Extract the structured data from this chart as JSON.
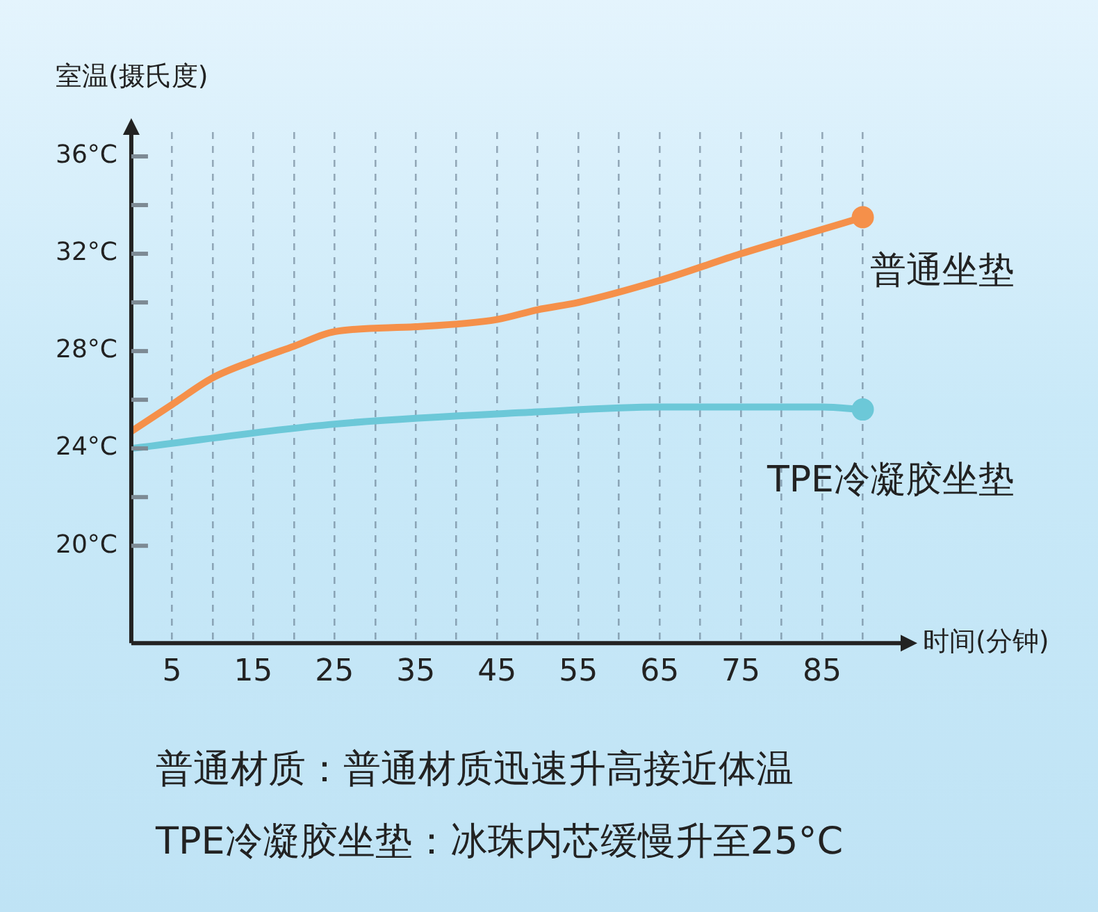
{
  "chart_data": {
    "type": "line",
    "ylabel": "室温(摄氏度)",
    "xlabel": "时间(分钟)",
    "xlim": [
      0,
      95
    ],
    "ylim": [
      16,
      37
    ],
    "xticks": [
      {
        "value": 5,
        "label": "5"
      },
      {
        "value": 10,
        "label": null
      },
      {
        "value": 15,
        "label": "15"
      },
      {
        "value": 20,
        "label": null
      },
      {
        "value": 25,
        "label": "25"
      },
      {
        "value": 30,
        "label": null
      },
      {
        "value": 35,
        "label": "35"
      },
      {
        "value": 40,
        "label": null
      },
      {
        "value": 45,
        "label": "45"
      },
      {
        "value": 50,
        "label": null
      },
      {
        "value": 55,
        "label": "55"
      },
      {
        "value": 60,
        "label": null
      },
      {
        "value": 65,
        "label": "65"
      },
      {
        "value": 70,
        "label": null
      },
      {
        "value": 75,
        "label": "75"
      },
      {
        "value": 80,
        "label": null
      },
      {
        "value": 85,
        "label": "85"
      },
      {
        "value": 90,
        "label": null
      }
    ],
    "yticks": [
      {
        "value": 20,
        "label": "20°C"
      },
      {
        "value": 22,
        "label": null
      },
      {
        "value": 24,
        "label": "24°C"
      },
      {
        "value": 26,
        "label": null
      },
      {
        "value": 28,
        "label": "28°C"
      },
      {
        "value": 30,
        "label": null
      },
      {
        "value": 32,
        "label": "32°C"
      },
      {
        "value": 34,
        "label": null
      },
      {
        "value": 36,
        "label": "36°C"
      }
    ],
    "grid": "x",
    "line_style": "solid",
    "series": [
      {
        "name": "普通坐垫",
        "color": "#f5904a",
        "x": [
          0,
          5,
          10,
          15,
          20,
          25,
          35,
          45,
          50,
          55,
          65,
          75,
          85,
          90
        ],
        "values": [
          24.7,
          25.8,
          26.9,
          27.6,
          28.2,
          28.8,
          29.0,
          29.3,
          29.7,
          30.0,
          30.9,
          32.0,
          33.0,
          33.5
        ]
      },
      {
        "name": "TPE冷凝胶坐垫",
        "color": "#6cc8d8",
        "x": [
          0,
          25,
          50,
          65,
          85,
          90
        ],
        "values": [
          24.0,
          25.0,
          25.5,
          25.7,
          25.7,
          25.6
        ]
      }
    ],
    "annotations": [
      "普通材质：普通材质迅速升高接近体温",
      "TPE冷凝胶坐垫：冰珠内芯缓慢升至25°C"
    ]
  }
}
